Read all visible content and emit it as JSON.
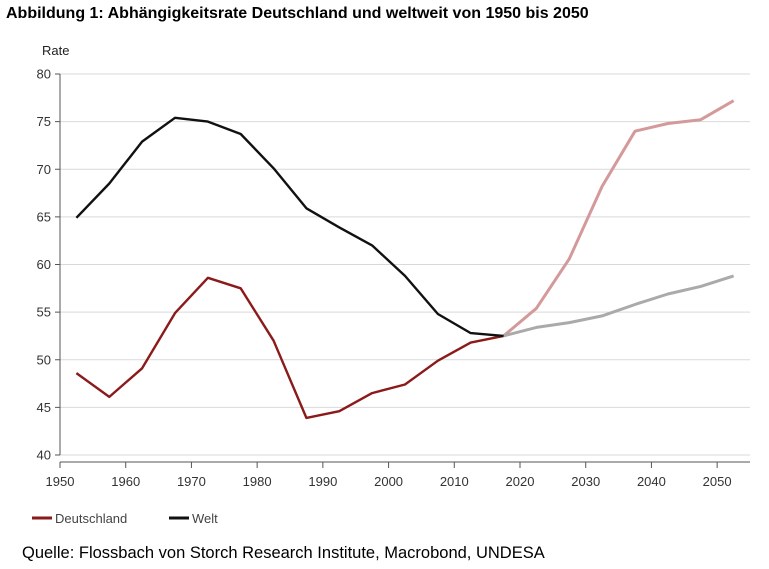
{
  "title": "Abbildung 1: Abhängigkeitsrate Deutschland und weltweit von 1950 bis 2050",
  "source": "Quelle: Flossbach von Storch Research Institute, Macrobond, UNDESA",
  "chart_data": {
    "type": "line",
    "title": "Abbildung 1: Abhängigkeitsrate Deutschland und weltweit von 1950 bis 2050",
    "ylabel": "Rate",
    "xlabel": "",
    "xlim": [
      1950,
      2055
    ],
    "ylim": [
      40,
      80
    ],
    "xticks": [
      1950,
      1960,
      1970,
      1980,
      1990,
      2000,
      2010,
      2020,
      2030,
      2040,
      2050
    ],
    "yticks": [
      40,
      45,
      50,
      55,
      60,
      65,
      70,
      75,
      80
    ],
    "grid": "horizontal",
    "legend_position": "bottom-left",
    "projection_start": 2017.5,
    "series": [
      {
        "name": "Deutschland",
        "color": "#8b1a1a",
        "projection_color": "#d4999a",
        "x": [
          1952.5,
          1957.5,
          1962.5,
          1967.5,
          1972.5,
          1977.5,
          1982.5,
          1987.5,
          1992.5,
          1997.5,
          2002.5,
          2007.5,
          2012.5,
          2017.5,
          2022.5,
          2027.5,
          2032.5,
          2037.5,
          2042.5,
          2047.5,
          2052.5
        ],
        "values": [
          48.6,
          46.1,
          49.1,
          54.9,
          58.6,
          57.5,
          52.0,
          43.9,
          44.6,
          46.5,
          47.4,
          49.9,
          51.8,
          52.5,
          55.4,
          60.6,
          68.2,
          74.0,
          74.8,
          75.2,
          77.2
        ]
      },
      {
        "name": "Welt",
        "color": "#111111",
        "projection_color": "#aaaaaa",
        "x": [
          1952.5,
          1957.5,
          1962.5,
          1967.5,
          1972.5,
          1977.5,
          1982.5,
          1987.5,
          1992.5,
          1997.5,
          2002.5,
          2007.5,
          2012.5,
          2017.5,
          2022.5,
          2027.5,
          2032.5,
          2037.5,
          2042.5,
          2047.5,
          2052.5
        ],
        "values": [
          64.9,
          68.5,
          72.9,
          75.4,
          75.0,
          73.7,
          70.1,
          65.9,
          63.9,
          62.0,
          58.8,
          54.8,
          52.8,
          52.5,
          53.4,
          53.9,
          54.6,
          55.8,
          56.9,
          57.7,
          58.8
        ]
      }
    ]
  }
}
